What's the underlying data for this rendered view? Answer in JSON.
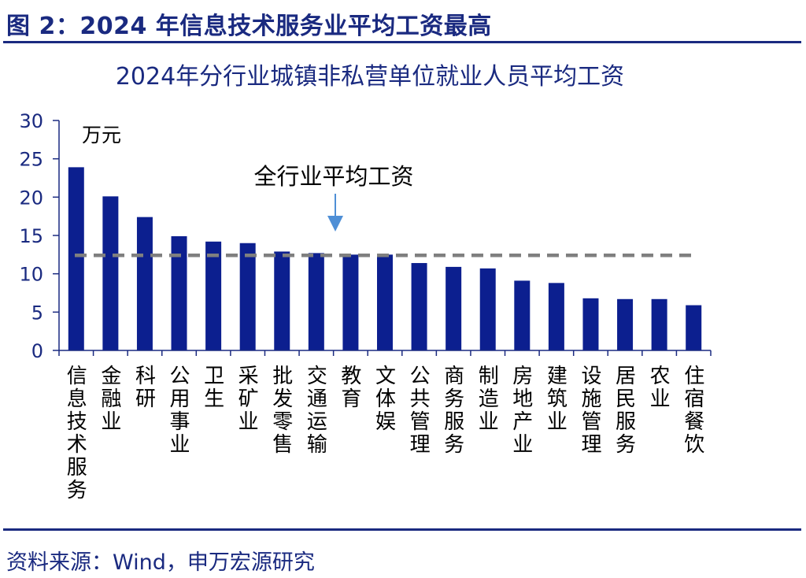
{
  "figure": {
    "title": "图 2：2024 年信息技术服务业平均工资最高",
    "source": "资料来源：Wind，申万宏源研究"
  },
  "colors": {
    "bar": "#0c1f8f",
    "axis": "#1a2a80",
    "average_line": "#7f7f7f",
    "arrow": "#4f8fd6",
    "title": "#1a2a80"
  },
  "chart_data": {
    "type": "bar",
    "title": "2024年分行业城镇非私营单位就业人员平均工资",
    "unit": "万元",
    "xlabel": "",
    "ylabel": "",
    "ylim": [
      0,
      30
    ],
    "yticks": [
      0,
      5,
      10,
      15,
      20,
      25,
      30
    ],
    "grid": false,
    "categories": [
      "信息技术服务",
      "金融业",
      "科研",
      "公用事业",
      "卫生",
      "采矿业",
      "批发零售",
      "交通运输",
      "教育",
      "文体娱",
      "公共管理",
      "商务服务",
      "制造业",
      "房地产业",
      "建筑业",
      "设施管理",
      "居民服务",
      "农业",
      "住宿餐饮"
    ],
    "values": [
      23.9,
      20.1,
      17.4,
      14.9,
      14.2,
      14.0,
      12.9,
      12.7,
      12.5,
      12.5,
      11.4,
      10.9,
      10.7,
      9.1,
      8.8,
      6.8,
      6.7,
      6.7,
      5.9
    ],
    "average": {
      "label": "全行业平均工资",
      "value": 12.4
    }
  }
}
